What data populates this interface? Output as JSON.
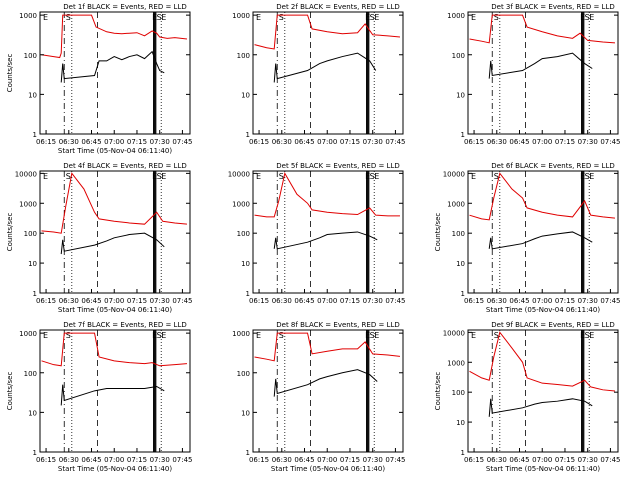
{
  "charts": [
    {
      "title": "Det 1f BLACK = Events, RED = LLD",
      "yticks": [
        "1000",
        "100",
        "10",
        "1"
      ],
      "ylabel": "Counts/sec",
      "xlabel": "Start Time (05-Nov-04 06:11:40)"
    },
    {
      "title": "Det 2f BLACK = Events, RED = LLD",
      "yticks": [
        "1000",
        "100",
        "10",
        "1"
      ],
      "ylabel": "",
      "xlabel": ""
    },
    {
      "title": "Det 3f BLACK = Events, RED = LLD",
      "yticks": [
        "1000",
        "100",
        "10",
        "1"
      ],
      "ylabel": "",
      "xlabel": ""
    },
    {
      "title": "Det 4f BLACK = Events, RED = LLD",
      "yticks": [
        "10000",
        "1000",
        "100",
        "10",
        "1"
      ],
      "ylabel": "Counts/sec",
      "xlabel": "Start Time (05-Nov-04 06:11:40)"
    },
    {
      "title": "Det 5f BLACK = Events, RED = LLD",
      "yticks": [
        "10000",
        "1000",
        "100",
        "10",
        "1"
      ],
      "ylabel": "",
      "xlabel": ""
    },
    {
      "title": "Det 6f BLACK = Events, RED = LLD",
      "yticks": [
        "10000",
        "1000",
        "100",
        "10",
        "1"
      ],
      "ylabel": "Counts/sec",
      "xlabel": "Start Time (05-Nov-04 06:11:40)"
    },
    {
      "title": "Det 7f BLACK = Events, RED = LLD",
      "yticks": [
        "1000",
        "100",
        "10",
        "1"
      ],
      "ylabel": "Counts/sec",
      "xlabel": "Start Time (05-Nov-04 06:11:40)"
    },
    {
      "title": "Det 8f BLACK = Events, RED = LLD",
      "yticks": [
        "1000",
        "100",
        "10",
        "1"
      ],
      "ylabel": "",
      "xlabel": "Start Time (05-Nov-04 06:11:40)"
    },
    {
      "title": "Det 9f BLACK = Events, RED = LLD",
      "yticks": [
        "10000",
        "1000",
        "100",
        "10",
        "1"
      ],
      "ylabel": "Counts/sec",
      "xlabel": "Start Time (05-Nov-04 06:11:40)"
    }
  ],
  "xticks": [
    "06:15",
    "06:30",
    "06:45",
    "07:00",
    "07:15",
    "07:30",
    "07:45"
  ],
  "flags": [
    "E",
    "S",
    "E",
    "S",
    "E"
  ],
  "colors": {
    "events": "#000000",
    "lld": "#e00000"
  },
  "chart_data": [
    {
      "type": "line",
      "title": "Det 1f BLACK = Events, RED = LLD",
      "xlabel": "Start Time (05-Nov-04 06:11:40)",
      "ylabel": "Counts/sec",
      "yscale": "log",
      "ylim": [
        1,
        1200
      ],
      "series": [
        {
          "name": "LLD",
          "color": "#e00000",
          "x": [
            "06:12",
            "06:20",
            "06:24",
            "06:25",
            "06:26",
            "06:28",
            "06:30",
            "06:35",
            "06:40",
            "06:45",
            "06:48",
            "06:55",
            "07:00",
            "07:05",
            "07:10",
            "07:15",
            "07:20",
            "07:25",
            "07:28",
            "07:30",
            "07:35",
            "07:40",
            "07:48"
          ],
          "y": [
            100,
            90,
            85,
            110,
            1000,
            1000,
            1000,
            1000,
            1000,
            1000,
            500,
            380,
            350,
            340,
            350,
            360,
            300,
            400,
            350,
            280,
            260,
            270,
            250
          ]
        },
        {
          "name": "Events",
          "color": "#000000",
          "x": [
            "06:25",
            "06:26",
            "06:27",
            "06:47",
            "06:50",
            "06:55",
            "07:00",
            "07:05",
            "07:10",
            "07:15",
            "07:20",
            "07:25",
            "07:28",
            "07:30",
            "07:33"
          ],
          "y": [
            20,
            60,
            25,
            30,
            70,
            70,
            90,
            75,
            90,
            100,
            80,
            120,
            60,
            40,
            35
          ]
        }
      ]
    },
    {
      "type": "line",
      "title": "Det 2f BLACK = Events, RED = LLD",
      "yscale": "log",
      "ylim": [
        1,
        1200
      ],
      "series": [
        {
          "name": "LLD",
          "color": "#e00000",
          "x": [
            "06:12",
            "06:20",
            "06:25",
            "06:27",
            "06:30",
            "06:40",
            "06:47",
            "06:50",
            "07:00",
            "07:10",
            "07:20",
            "07:25",
            "07:30",
            "07:40",
            "07:48"
          ],
          "y": [
            180,
            150,
            140,
            1000,
            1000,
            1000,
            1000,
            450,
            380,
            340,
            360,
            600,
            320,
            300,
            280
          ]
        },
        {
          "name": "Events",
          "color": "#000000",
          "x": [
            "06:25",
            "06:26",
            "06:27",
            "06:47",
            "06:55",
            "07:00",
            "07:10",
            "07:20",
            "07:28",
            "07:32"
          ],
          "y": [
            20,
            60,
            25,
            40,
            60,
            70,
            90,
            110,
            70,
            40
          ]
        }
      ]
    },
    {
      "type": "line",
      "title": "Det 3f BLACK = Events, RED = LLD",
      "yscale": "log",
      "ylim": [
        1,
        1200
      ],
      "series": [
        {
          "name": "LLD",
          "color": "#e00000",
          "x": [
            "06:12",
            "06:20",
            "06:25",
            "06:27",
            "06:30",
            "06:40",
            "06:47",
            "06:50",
            "07:00",
            "07:10",
            "07:20",
            "07:25",
            "07:30",
            "07:40",
            "07:48"
          ],
          "y": [
            250,
            220,
            200,
            1000,
            1000,
            1000,
            1000,
            500,
            380,
            300,
            260,
            350,
            230,
            210,
            200
          ]
        },
        {
          "name": "Events",
          "color": "#000000",
          "x": [
            "06:25",
            "06:26",
            "06:27",
            "06:47",
            "06:55",
            "07:00",
            "07:10",
            "07:20",
            "07:28",
            "07:33"
          ],
          "y": [
            25,
            70,
            30,
            40,
            60,
            80,
            90,
            110,
            60,
            45
          ]
        }
      ]
    },
    {
      "type": "line",
      "title": "Det 4f BLACK = Events, RED = LLD",
      "ylabel": "Counts/sec",
      "xlabel": "Start Time (05-Nov-04 06:11:40)",
      "yscale": "log",
      "ylim": [
        1,
        12000
      ],
      "series": [
        {
          "name": "LLD",
          "color": "#e00000",
          "x": [
            "06:12",
            "06:20",
            "06:25",
            "06:28",
            "06:32",
            "06:40",
            "06:47",
            "06:50",
            "07:00",
            "07:10",
            "07:20",
            "07:28",
            "07:32",
            "07:40",
            "07:48"
          ],
          "y": [
            120,
            110,
            100,
            800,
            10000,
            3000,
            500,
            300,
            250,
            220,
            200,
            500,
            250,
            220,
            200
          ]
        },
        {
          "name": "Events",
          "color": "#000000",
          "x": [
            "06:25",
            "06:26",
            "06:27",
            "06:47",
            "06:55",
            "07:00",
            "07:10",
            "07:20",
            "07:28",
            "07:33"
          ],
          "y": [
            20,
            60,
            25,
            40,
            55,
            70,
            90,
            100,
            60,
            35
          ]
        }
      ]
    },
    {
      "type": "line",
      "title": "Det 5f BLACK = Events, RED = LLD",
      "yscale": "log",
      "ylim": [
        1,
        12000
      ],
      "series": [
        {
          "name": "LLD",
          "color": "#e00000",
          "x": [
            "06:12",
            "06:20",
            "06:25",
            "06:28",
            "06:32",
            "06:40",
            "06:47",
            "06:50",
            "07:00",
            "07:10",
            "07:20",
            "07:28",
            "07:32",
            "07:40",
            "07:48"
          ],
          "y": [
            400,
            350,
            350,
            1200,
            10000,
            2000,
            1000,
            600,
            500,
            450,
            420,
            700,
            400,
            380,
            380
          ]
        },
        {
          "name": "Events",
          "color": "#000000",
          "x": [
            "06:25",
            "06:26",
            "06:27",
            "06:47",
            "06:55",
            "07:00",
            "07:10",
            "07:20",
            "07:28",
            "07:33"
          ],
          "y": [
            30,
            70,
            30,
            50,
            70,
            90,
            100,
            110,
            80,
            60
          ]
        }
      ]
    },
    {
      "type": "line",
      "title": "Det 6f BLACK = Events, RED = LLD",
      "ylabel": "Counts/sec",
      "xlabel": "Start Time (05-Nov-04 06:11:40)",
      "yscale": "log",
      "ylim": [
        1,
        12000
      ],
      "series": [
        {
          "name": "LLD",
          "color": "#e00000",
          "x": [
            "06:12",
            "06:20",
            "06:25",
            "06:28",
            "06:32",
            "06:40",
            "06:47",
            "06:50",
            "07:00",
            "07:10",
            "07:20",
            "07:28",
            "07:32",
            "07:40",
            "07:48"
          ],
          "y": [
            400,
            300,
            280,
            1500,
            10000,
            3000,
            1500,
            700,
            500,
            400,
            350,
            1200,
            400,
            350,
            320
          ]
        },
        {
          "name": "Events",
          "color": "#000000",
          "x": [
            "06:25",
            "06:26",
            "06:27",
            "06:47",
            "06:55",
            "07:00",
            "07:10",
            "07:20",
            "07:28",
            "07:33"
          ],
          "y": [
            30,
            70,
            30,
            45,
            65,
            80,
            95,
            110,
            70,
            50
          ]
        }
      ]
    },
    {
      "type": "line",
      "title": "Det 7f BLACK = Events, RED = LLD",
      "ylabel": "Counts/sec",
      "xlabel": "Start Time (05-Nov-04 06:11:40)",
      "yscale": "log",
      "ylim": [
        1,
        1200
      ],
      "series": [
        {
          "name": "LLD",
          "color": "#e00000",
          "x": [
            "06:12",
            "06:20",
            "06:25",
            "06:27",
            "06:30",
            "06:40",
            "06:47",
            "06:50",
            "07:00",
            "07:10",
            "07:20",
            "07:25",
            "07:30",
            "07:40",
            "07:48"
          ],
          "y": [
            200,
            160,
            150,
            1000,
            1000,
            1000,
            1000,
            250,
            200,
            180,
            170,
            180,
            150,
            160,
            170
          ]
        },
        {
          "name": "Events",
          "color": "#000000",
          "x": [
            "06:25",
            "06:26",
            "06:27",
            "06:47",
            "06:55",
            "07:00",
            "07:10",
            "07:20",
            "07:28",
            "07:33"
          ],
          "y": [
            15,
            50,
            20,
            35,
            40,
            40,
            40,
            40,
            45,
            35
          ]
        }
      ]
    },
    {
      "type": "line",
      "title": "Det 8f BLACK = Events, RED = LLD",
      "xlabel": "Start Time (05-Nov-04 06:11:40)",
      "yscale": "log",
      "ylim": [
        1,
        1200
      ],
      "series": [
        {
          "name": "LLD",
          "color": "#e00000",
          "x": [
            "06:12",
            "06:20",
            "06:25",
            "06:27",
            "06:30",
            "06:40",
            "06:47",
            "06:50",
            "07:00",
            "07:10",
            "07:20",
            "07:25",
            "07:30",
            "07:40",
            "07:48"
          ],
          "y": [
            250,
            220,
            200,
            1000,
            1000,
            1000,
            1000,
            300,
            350,
            400,
            400,
            600,
            300,
            280,
            260
          ]
        },
        {
          "name": "Events",
          "color": "#000000",
          "x": [
            "06:25",
            "06:26",
            "06:27",
            "06:47",
            "06:55",
            "07:00",
            "07:10",
            "07:20",
            "07:28",
            "07:33"
          ],
          "y": [
            25,
            70,
            30,
            50,
            70,
            80,
            100,
            120,
            90,
            60
          ]
        }
      ]
    },
    {
      "type": "line",
      "title": "Det 9f BLACK = Events, RED = LLD",
      "ylabel": "Counts/sec",
      "xlabel": "Start Time (05-Nov-04 06:11:40)",
      "yscale": "log",
      "ylim": [
        1,
        12000
      ],
      "series": [
        {
          "name": "LLD",
          "color": "#e00000",
          "x": [
            "06:12",
            "06:20",
            "06:25",
            "06:28",
            "06:32",
            "06:40",
            "06:47",
            "06:50",
            "07:00",
            "07:10",
            "07:20",
            "07:28",
            "07:32",
            "07:40",
            "07:48"
          ],
          "y": [
            500,
            300,
            250,
            1500,
            10000,
            3000,
            1000,
            300,
            200,
            180,
            160,
            250,
            150,
            120,
            110
          ]
        },
        {
          "name": "Events",
          "color": "#000000",
          "x": [
            "06:25",
            "06:26",
            "06:27",
            "06:47",
            "06:55",
            "07:00",
            "07:10",
            "07:20",
            "07:28",
            "07:33"
          ],
          "y": [
            15,
            60,
            20,
            30,
            40,
            45,
            50,
            60,
            50,
            35
          ]
        }
      ]
    }
  ]
}
